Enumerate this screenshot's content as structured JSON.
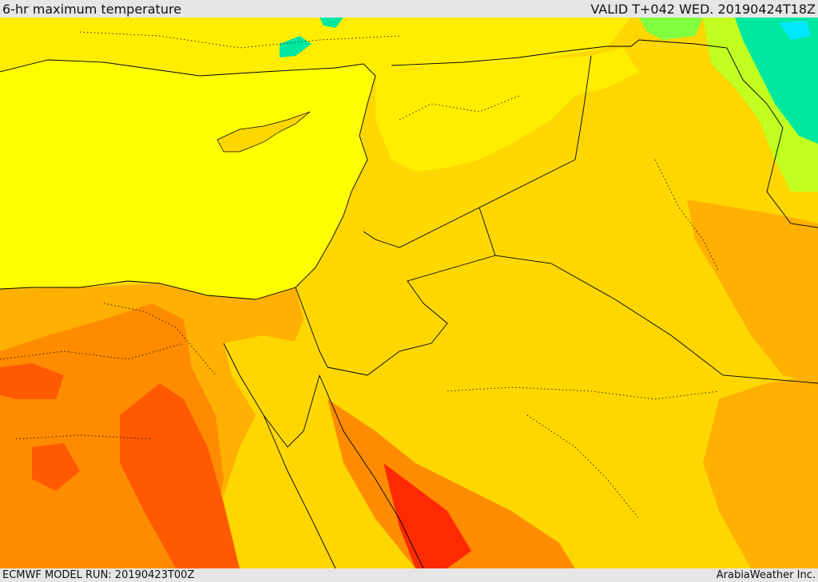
{
  "header": {
    "title": "6-hr maximum temperature",
    "valid": "VALID T+042 WED. 20190424T18Z"
  },
  "footer": {
    "model_run": "ECMWF MODEL RUN: 20190423T00Z",
    "credit": "ArabiaWeather Inc."
  },
  "colors": {
    "sea": "#ffff00",
    "warm": "#ffd700",
    "hot": "#ffb000",
    "hotter": "#ff8c00",
    "very_hot": "#ff5a00",
    "extreme": "#ff2a00",
    "mild": "#f0ff00",
    "cool": "#80ff40",
    "cold": "#00e8a0",
    "colder": "#00e8ff",
    "border": "#000000"
  }
}
